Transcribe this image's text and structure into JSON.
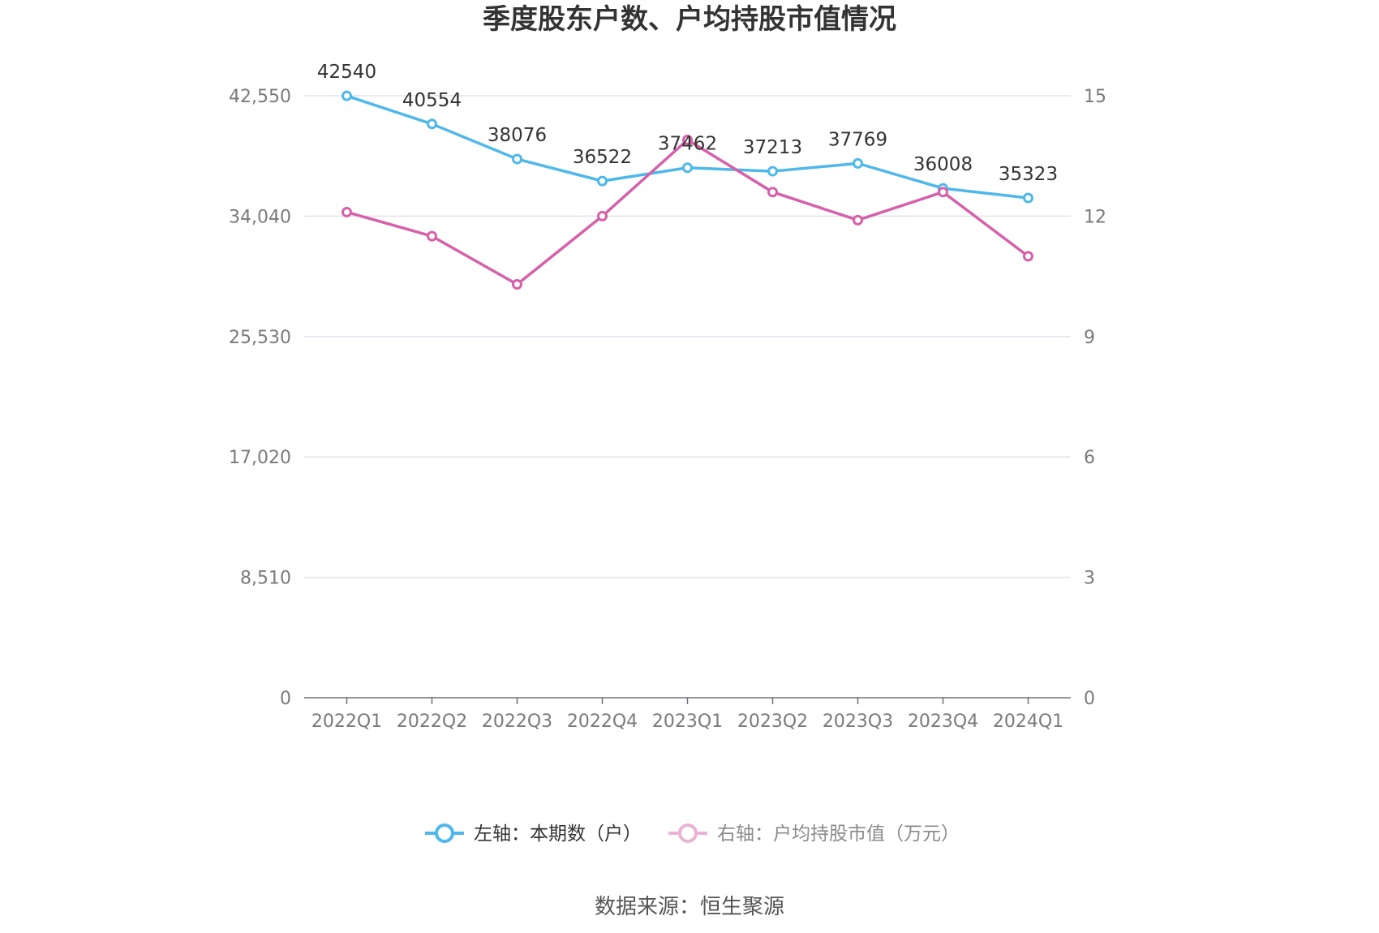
{
  "chart_data": {
    "type": "line",
    "title": "季度股东户数、户均持股市值情况",
    "categories": [
      "2022Q1",
      "2022Q2",
      "2022Q3",
      "2022Q4",
      "2023Q1",
      "2023Q2",
      "2023Q3",
      "2023Q4",
      "2024Q1"
    ],
    "left_axis": {
      "ylim": [
        0,
        42550
      ],
      "ticks": [
        "0",
        "8,510",
        "17,020",
        "25,530",
        "34,040",
        "42,550"
      ],
      "tick_values": [
        0,
        8510,
        17020,
        25530,
        34040,
        42550
      ]
    },
    "right_axis": {
      "ylim": [
        0,
        15
      ],
      "ticks": [
        "0",
        "3",
        "6",
        "9",
        "12",
        "15"
      ],
      "tick_values": [
        0,
        3,
        6,
        9,
        12,
        15
      ]
    },
    "series": [
      {
        "name": "左轴：本期数（户）",
        "axis": "left",
        "color": "#4fb8ea",
        "values": [
          42540,
          40554,
          38076,
          36522,
          37462,
          37213,
          37769,
          36008,
          35323
        ],
        "labels": [
          "42540",
          "40554",
          "38076",
          "36522",
          "37462",
          "37213",
          "37769",
          "36008",
          "35323"
        ]
      },
      {
        "name": "右轴：户均持股市值（万元）",
        "axis": "right",
        "color": "#d660aa",
        "values": [
          12.1,
          11.5,
          10.3,
          12.0,
          13.9,
          12.6,
          11.9,
          12.6,
          11.0
        ]
      }
    ],
    "grid": true,
    "legend_position": "bottom"
  },
  "source": "数据来源：恒生聚源"
}
